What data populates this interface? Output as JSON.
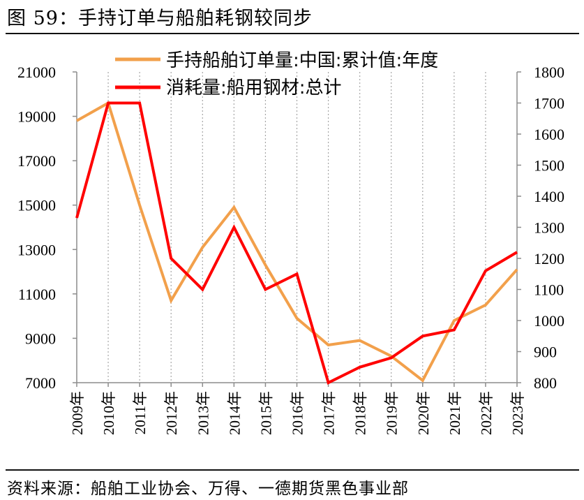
{
  "figure": {
    "title": "图 59：手持订单与船舶耗钢较同步",
    "source": "资料来源：船舶工业协会、万得、一德期货黑色事业部"
  },
  "colors": {
    "orders": "#F2A04B",
    "steel": "#FF0000",
    "axis": "#8C8C8C",
    "grid": "#A6A6A6"
  },
  "chart_data": {
    "type": "line",
    "title": "",
    "categories": [
      "2009年",
      "2010年",
      "2011年",
      "2012年",
      "2013年",
      "2014年",
      "2015年",
      "2016年",
      "2017年",
      "2018年",
      "2019年",
      "2020年",
      "2021年",
      "2022年",
      "2023年"
    ],
    "series": [
      {
        "name": "手持船舶订单量:中国:累计值:年度",
        "axis": "left",
        "values": [
          18800,
          19600,
          15000,
          10700,
          13100,
          14900,
          12300,
          9900,
          8700,
          8900,
          8200,
          7100,
          9800,
          10500,
          12100
        ]
      },
      {
        "name": "消耗量:船用钢材:总计",
        "axis": "right",
        "values": [
          1330,
          1700,
          1700,
          1200,
          1100,
          1300,
          1100,
          1150,
          800,
          850,
          880,
          950,
          970,
          1160,
          1220
        ]
      }
    ],
    "y_left": {
      "min": 7000,
      "max": 21000,
      "ticks": [
        "7000",
        "9000",
        "11000",
        "13000",
        "15000",
        "17000",
        "19000",
        "21000"
      ]
    },
    "y_right": {
      "min": 800,
      "max": 1800,
      "ticks": [
        "800",
        "900",
        "1000",
        "1100",
        "1200",
        "1300",
        "1400",
        "1500",
        "1600",
        "1700",
        "1800"
      ]
    },
    "grid": "vertical-dotted",
    "legend_position": "top-center"
  }
}
